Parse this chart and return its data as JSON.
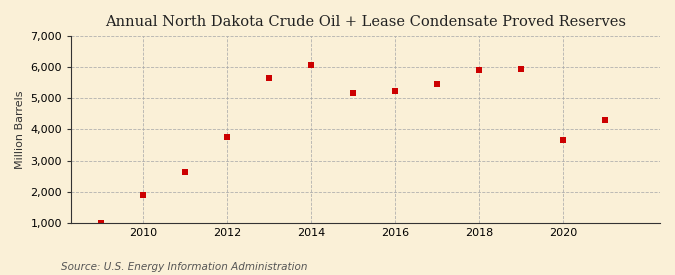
{
  "title": "Annual North Dakota Crude Oil + Lease Condensate Proved Reserves",
  "ylabel": "Million Barrels",
  "source": "Source: U.S. Energy Information Administration",
  "years": [
    2009,
    2010,
    2011,
    2012,
    2013,
    2014,
    2015,
    2016,
    2017,
    2018,
    2019,
    2020,
    2021
  ],
  "values": [
    1000,
    1900,
    2650,
    3750,
    5650,
    6050,
    5175,
    5225,
    5450,
    5900,
    5925,
    3650,
    4300
  ],
  "marker_color": "#cc0000",
  "background_color": "#faf0d7",
  "plot_background": "#faf0d7",
  "grid_color": "#aaaaaa",
  "ylim": [
    1000,
    7000
  ],
  "yticks": [
    1000,
    2000,
    3000,
    4000,
    5000,
    6000,
    7000
  ],
  "xtick_years": [
    2010,
    2012,
    2014,
    2016,
    2018,
    2020
  ],
  "xlim_left": 2008.3,
  "xlim_right": 2022.3,
  "title_fontsize": 10.5,
  "axis_fontsize": 8,
  "source_fontsize": 7.5
}
